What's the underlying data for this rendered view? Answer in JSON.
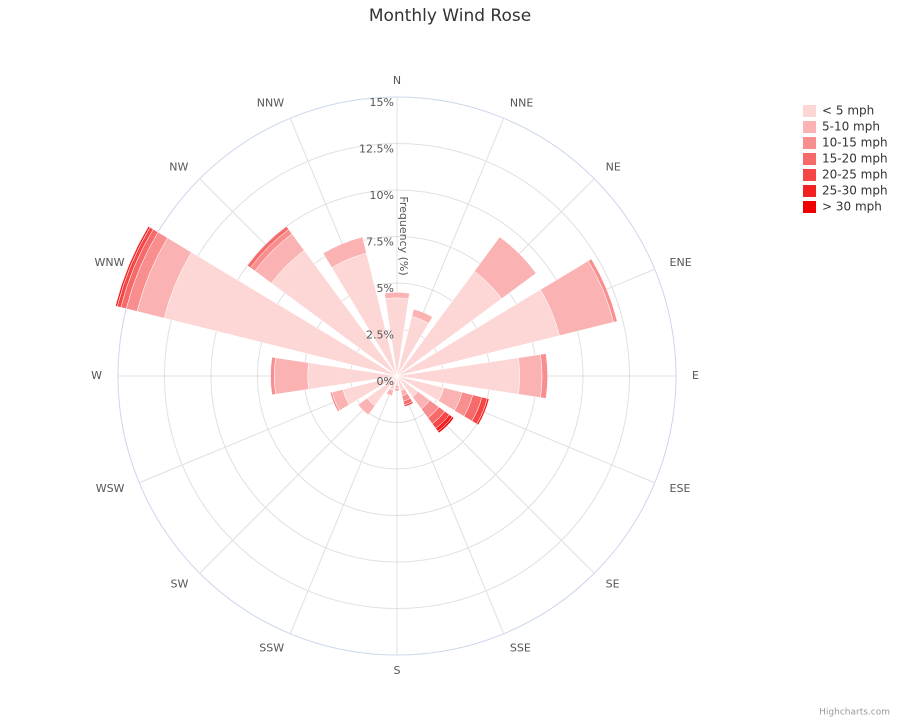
{
  "chart_data": {
    "type": "polar_stacked_column",
    "title": "Monthly Wind Rose",
    "y_axis_title": "Frequency (%)",
    "credits": "Highcharts.com",
    "categories": [
      "N",
      "NNE",
      "NE",
      "ENE",
      "E",
      "ESE",
      "SE",
      "SSE",
      "S",
      "SSW",
      "SW",
      "WSW",
      "W",
      "WNW",
      "NW",
      "NNW"
    ],
    "ylim": [
      0,
      15
    ],
    "yticks": [
      {
        "value": 0,
        "label": "0%"
      },
      {
        "value": 2.5,
        "label": "2.5%"
      },
      {
        "value": 5,
        "label": "5%"
      },
      {
        "value": 7.5,
        "label": "7.5%"
      },
      {
        "value": 10,
        "label": "10%"
      },
      {
        "value": 12.5,
        "label": "12.5%"
      },
      {
        "value": 15,
        "label": "15%"
      }
    ],
    "grid": true,
    "legend": "top-right",
    "series": [
      {
        "name": "< 5 mph",
        "color": "#fdd6d6",
        "values": [
          4.2,
          3.3,
          7.0,
          9.0,
          6.6,
          2.6,
          1.4,
          0.8,
          0.5,
          0.8,
          2.0,
          3.0,
          4.8,
          12.9,
          8.4,
          6.8
        ]
      },
      {
        "name": "5-10 mph",
        "color": "#fbb2b2",
        "values": [
          0.3,
          0.4,
          2.3,
          3.0,
          1.2,
          1.0,
          0.8,
          0.3,
          0.2,
          0.3,
          0.6,
          0.6,
          1.8,
          1.5,
          1.1,
          0.9
        ]
      },
      {
        "name": "10-15 mph",
        "color": "#f98e8e",
        "values": [
          0,
          0,
          0,
          0.2,
          0.3,
          0.6,
          0.6,
          0.3,
          0.1,
          0,
          0,
          0.1,
          0.2,
          0.6,
          0.3,
          0
        ]
      },
      {
        "name": "15-20 mph",
        "color": "#f66a6a",
        "values": [
          0,
          0,
          0,
          0,
          0,
          0.5,
          0.4,
          0.2,
          0,
          0,
          0,
          0,
          0,
          0.3,
          0.2,
          0
        ]
      },
      {
        "name": "20-25 mph",
        "color": "#f44646",
        "values": [
          0,
          0,
          0,
          0,
          0,
          0.3,
          0.3,
          0.1,
          0,
          0,
          0,
          0,
          0,
          0.2,
          0,
          0
        ]
      },
      {
        "name": "25-30 mph",
        "color": "#f22222",
        "values": [
          0,
          0,
          0,
          0,
          0,
          0.1,
          0.2,
          0,
          0,
          0,
          0,
          0,
          0,
          0.1,
          0,
          0
        ]
      },
      {
        "name": "> 30 mph",
        "color": "#f00000",
        "values": [
          0,
          0,
          0,
          0,
          0,
          0,
          0.1,
          0,
          0,
          0,
          0,
          0,
          0,
          0,
          0,
          0
        ]
      }
    ]
  }
}
